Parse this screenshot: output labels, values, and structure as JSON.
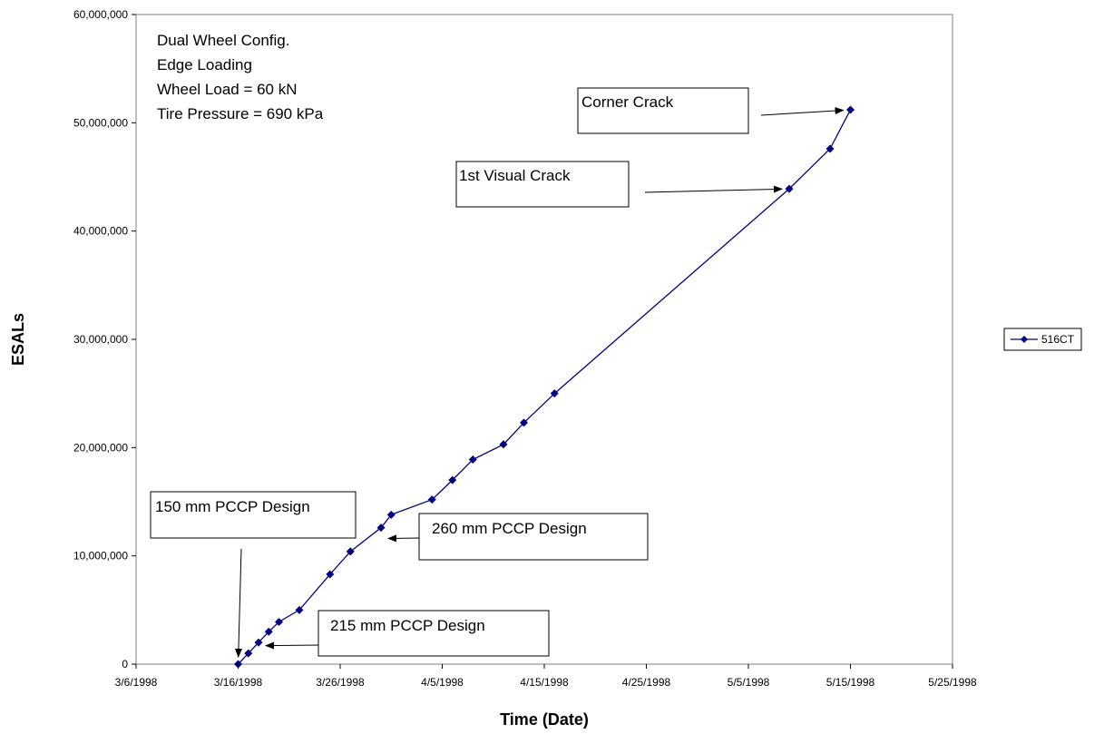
{
  "chart_data": {
    "type": "line",
    "title": "",
    "xlabel": "Time (Date)",
    "ylabel": "ESALs",
    "x_tick_labels": [
      "3/6/1998",
      "3/16/1998",
      "3/26/1998",
      "4/5/1998",
      "4/15/1998",
      "4/25/1998",
      "5/5/1998",
      "5/15/1998",
      "5/25/1998"
    ],
    "xlim": [
      "3/6/1998",
      "5/25/1998"
    ],
    "y_tick_labels": [
      "0",
      "10,000,000",
      "20,000,000",
      "30,000,000",
      "40,000,000",
      "50,000,000",
      "60,000,000"
    ],
    "ylim": [
      0,
      60000000
    ],
    "grid": false,
    "legend_position": "right",
    "series": [
      {
        "name": "516CT",
        "color": "#000080",
        "marker": "diamond",
        "x": [
          "3/16/1998",
          "3/17/1998",
          "3/18/1998",
          "3/19/1998",
          "3/20/1998",
          "3/22/1998",
          "3/25/1998",
          "3/27/1998",
          "3/30/1998",
          "3/31/1998",
          "4/4/1998",
          "4/6/1998",
          "4/8/1998",
          "4/11/1998",
          "4/13/1998",
          "4/16/1998",
          "5/9/1998",
          "5/13/1998",
          "5/15/1998"
        ],
        "y": [
          0,
          1000000,
          2000000,
          3000000,
          3900000,
          5000000,
          8300000,
          10400000,
          12600000,
          13800000,
          15200000,
          17000000,
          18900000,
          20300000,
          22300000,
          25000000,
          43900000,
          47600000,
          51200000
        ]
      }
    ],
    "notes": [
      "Dual Wheel Config.",
      "Edge Loading",
      "Wheel Load = 60 kN",
      "Tire Pressure = 690 kPa"
    ],
    "annotations": [
      {
        "text": "Corner Crack",
        "points_to": {
          "x": "5/15/1998",
          "y": 51200000
        }
      },
      {
        "text": "1st Visual Crack",
        "points_to": {
          "x": "5/9/1998",
          "y": 43900000
        }
      },
      {
        "text": "150 mm PCCP Design",
        "points_to": {
          "x": "3/16/1998",
          "y": 0
        }
      },
      {
        "text": "260 mm PCCP Design",
        "points_to": {
          "x": "3/30/1998",
          "y": 11600000
        }
      },
      {
        "text": "215 mm PCCP Design",
        "points_to": {
          "x": "3/18/1998",
          "y": 1700000
        }
      }
    ]
  }
}
